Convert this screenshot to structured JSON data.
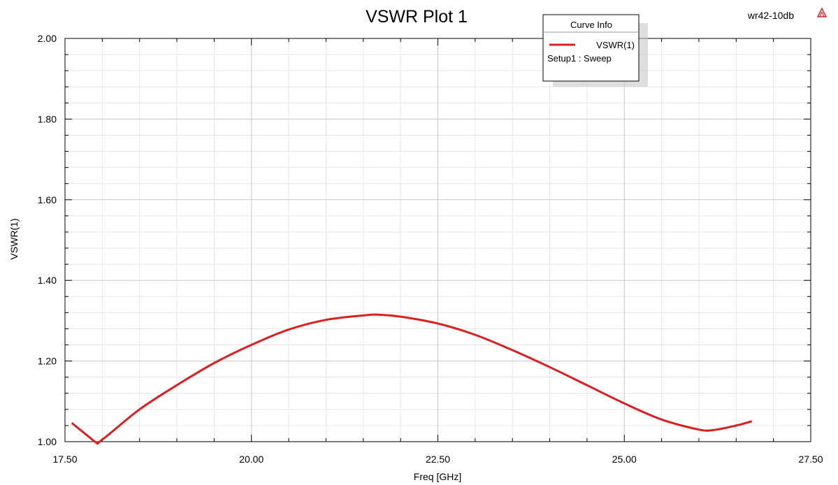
{
  "design_name": "wr42-10db",
  "app_icon": "ansys-logo-icon",
  "legend": {
    "title": "Curve Info",
    "entry": "VSWR(1)",
    "subentry": "Setup1 : Sweep"
  },
  "colors": {
    "curve": "#d91f1f",
    "grid_major": "#c8c8c8",
    "grid_minor": "#e6e6e6",
    "icon": "#cc2a2a"
  },
  "chart_data": {
    "type": "line",
    "title": "VSWR Plot 1",
    "xlabel": "Freq [GHz]",
    "ylabel": "VSWR(1)",
    "xlim": [
      17.5,
      27.5
    ],
    "ylim": [
      1.0,
      2.0
    ],
    "x_ticks": [
      "17.50",
      "20.00",
      "22.50",
      "25.00",
      "27.50"
    ],
    "y_ticks": [
      "1.00",
      "1.20",
      "1.40",
      "1.60",
      "1.80",
      "2.00"
    ],
    "grid": true,
    "legend_position": "top-right",
    "series": [
      {
        "name": "VSWR(1)",
        "x": [
          17.6,
          17.9,
          18.0,
          18.5,
          19.0,
          19.5,
          20.0,
          20.5,
          21.0,
          21.5,
          21.7,
          22.0,
          22.5,
          23.0,
          23.5,
          24.0,
          24.5,
          25.0,
          25.5,
          26.0,
          26.2,
          26.5,
          26.7
        ],
        "y": [
          1.045,
          1.0,
          1.005,
          1.08,
          1.14,
          1.195,
          1.24,
          1.278,
          1.302,
          1.313,
          1.315,
          1.31,
          1.293,
          1.265,
          1.227,
          1.185,
          1.14,
          1.095,
          1.055,
          1.03,
          1.029,
          1.04,
          1.05
        ]
      }
    ]
  }
}
